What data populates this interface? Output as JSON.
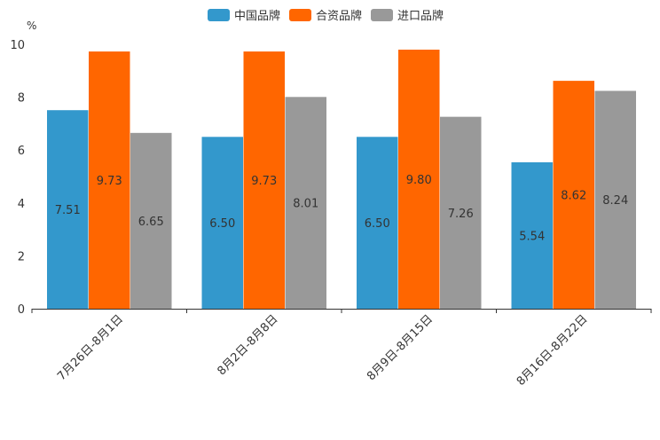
{
  "chart_data": {
    "type": "bar",
    "title": "",
    "unit_label": "%",
    "xlabel": "",
    "ylabel": "%",
    "ylim": [
      0,
      10
    ],
    "yticks": [
      "0",
      "2",
      "4",
      "6",
      "8",
      "10"
    ],
    "categories": [
      "7月26日-8月1日",
      "8月2日-8月8日",
      "8月9日-8月15日",
      "8月16日-8月22日"
    ],
    "series": [
      {
        "name": "中国品牌",
        "color": "#3398cc",
        "values": [
          7.51,
          6.5,
          6.5,
          5.54
        ],
        "labels": [
          "7.51",
          "6.50",
          "6.50",
          "5.54"
        ]
      },
      {
        "name": "合资品牌",
        "color": "#ff6600",
        "values": [
          9.73,
          9.73,
          9.8,
          8.62
        ],
        "labels": [
          "9.73",
          "9.73",
          "9.80",
          "8.62"
        ]
      },
      {
        "name": "进口品牌",
        "color": "#999999",
        "values": [
          6.65,
          8.01,
          7.26,
          8.24
        ],
        "labels": [
          "6.65",
          "8.01",
          "7.26",
          "8.24"
        ]
      }
    ],
    "legend_position": "top-center",
    "grid": false
  }
}
